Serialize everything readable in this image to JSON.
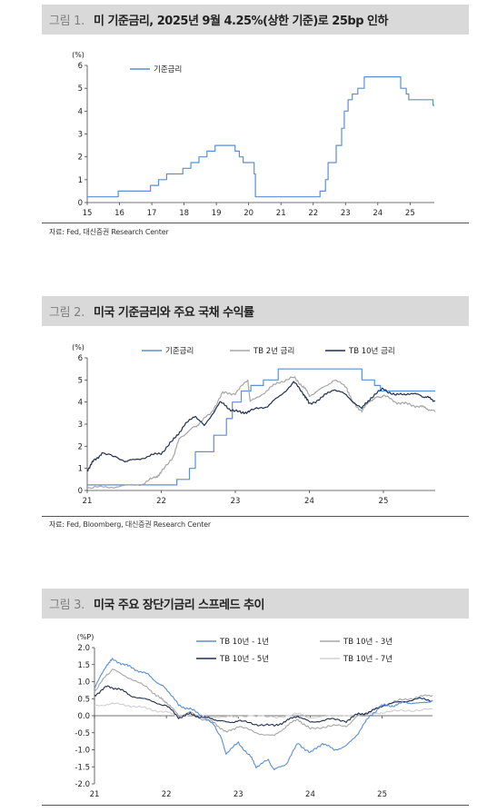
{
  "charts": [
    {
      "fig_label": "그림 1.",
      "title": "미 기준금리, 2025년 9월 4.25%(상한 기준)로 25bp 인하",
      "source": "자료: Fed, 대신증권 Research Center",
      "colors": {
        "series": [
          "#5b8fd6"
        ]
      }
    },
    {
      "fig_label": "그림 2.",
      "title": "미국 기준금리와 주요 국채 수익률",
      "source": "자료: Fed, Bloomberg, 대신증권 Research Center",
      "colors": {
        "series": [
          "#5b8fd6",
          "#a6a6a6",
          "#1f2f4f"
        ]
      }
    },
    {
      "fig_label": "그림 3.",
      "title": "미국 주요 장단기금리 스프레드 추이",
      "source": "",
      "colors": {
        "series": [
          "#5b8fd6",
          "#a6a6a6",
          "#1f2f4f",
          "#d0d0d0"
        ]
      }
    }
  ],
  "chart_data": [
    {
      "type": "line",
      "unit": "(%)",
      "ylim": [
        0,
        6
      ],
      "yticks": [
        "0",
        "1",
        "2",
        "3",
        "4",
        "5",
        "6"
      ],
      "xlim": [
        2015,
        2025.75
      ],
      "xticks": [
        "15",
        "16",
        "17",
        "18",
        "19",
        "20",
        "21",
        "22",
        "23",
        "24",
        "25"
      ],
      "legend_position": "top-left",
      "series": [
        {
          "name": "기준금리",
          "step": true,
          "x": [
            2015.0,
            2015.96,
            2016.96,
            2017.21,
            2017.46,
            2017.96,
            2018.21,
            2018.46,
            2018.71,
            2018.96,
            2019.58,
            2019.71,
            2019.83,
            2020.17,
            2020.21,
            2022.21,
            2022.38,
            2022.46,
            2022.71,
            2022.88,
            2022.96,
            2023.08,
            2023.21,
            2023.38,
            2023.58,
            2024.71,
            2024.88,
            2024.96,
            2025.71,
            2025.75
          ],
          "values": [
            0.25,
            0.5,
            0.75,
            1.0,
            1.25,
            1.5,
            1.75,
            2.0,
            2.25,
            2.5,
            2.25,
            2.0,
            1.75,
            1.25,
            0.25,
            0.5,
            1.0,
            1.75,
            2.5,
            3.25,
            4.0,
            4.5,
            4.75,
            5.0,
            5.5,
            5.0,
            4.75,
            4.5,
            4.25,
            4.25
          ]
        }
      ]
    },
    {
      "type": "line",
      "unit": "(%)",
      "ylim": [
        0,
        6
      ],
      "yticks": [
        "0",
        "1",
        "2",
        "3",
        "4",
        "5",
        "6"
      ],
      "xlim": [
        2021.0,
        2025.7
      ],
      "xticks": [
        "21",
        "22",
        "23",
        "24",
        "25"
      ],
      "legend_position": "top",
      "series": [
        {
          "name": "기준금리",
          "step": true,
          "x": [
            2021.0,
            2022.21,
            2022.38,
            2022.46,
            2022.71,
            2022.88,
            2022.96,
            2023.08,
            2023.21,
            2023.38,
            2023.58,
            2024.71,
            2024.88,
            2024.96,
            2025.7
          ],
          "values": [
            0.25,
            0.5,
            1.0,
            1.75,
            2.5,
            3.25,
            4.0,
            4.5,
            4.75,
            5.0,
            5.5,
            5.0,
            4.75,
            4.5,
            4.5
          ]
        },
        {
          "name": "TB 2년 금리",
          "x": [
            2021.0,
            2021.25,
            2021.5,
            2021.75,
            2021.92,
            2022.0,
            2022.17,
            2022.25,
            2022.42,
            2022.5,
            2022.67,
            2022.83,
            2023.0,
            2023.17,
            2023.2,
            2023.42,
            2023.58,
            2023.79,
            2023.92,
            2024.0,
            2024.17,
            2024.33,
            2024.5,
            2024.58,
            2024.71,
            2024.83,
            2024.92,
            2025.0,
            2025.17,
            2025.33,
            2025.5,
            2025.6,
            2025.7
          ],
          "values": [
            0.12,
            0.15,
            0.2,
            0.3,
            0.6,
            0.8,
            1.6,
            2.4,
            2.8,
            3.0,
            3.5,
            4.4,
            4.4,
            5.0,
            4.0,
            4.5,
            4.9,
            5.1,
            4.7,
            4.3,
            4.6,
            5.0,
            4.7,
            4.0,
            3.6,
            4.1,
            4.2,
            4.3,
            4.0,
            3.9,
            3.8,
            3.7,
            3.55
          ]
        },
        {
          "name": "TB 10년 금리",
          "x": [
            2021.0,
            2021.08,
            2021.2,
            2021.5,
            2021.6,
            2021.83,
            2022.0,
            2022.17,
            2022.3,
            2022.46,
            2022.58,
            2022.79,
            2022.92,
            2023.08,
            2023.2,
            2023.42,
            2023.58,
            2023.79,
            2023.92,
            2024.0,
            2024.17,
            2024.33,
            2024.5,
            2024.71,
            2024.83,
            2025.0,
            2025.17,
            2025.33,
            2025.5,
            2025.6,
            2025.7
          ],
          "values": [
            0.93,
            1.3,
            1.7,
            1.35,
            1.35,
            1.55,
            1.7,
            2.3,
            2.9,
            3.4,
            2.9,
            4.0,
            3.7,
            3.5,
            3.6,
            3.8,
            4.2,
            4.9,
            4.4,
            3.9,
            4.2,
            4.6,
            4.3,
            3.7,
            4.2,
            4.6,
            4.3,
            4.4,
            4.3,
            4.2,
            4.05
          ]
        }
      ]
    },
    {
      "type": "line",
      "unit": "(%P)",
      "ylim": [
        -2.0,
        2.0
      ],
      "yticks": [
        "2.0",
        "1.5",
        "1.0",
        "0.5",
        "0.0",
        "-0.5",
        "-1.0",
        "-1.5",
        "-2.0"
      ],
      "xlim": [
        2021.0,
        2025.7
      ],
      "xticks": [
        "21",
        "22",
        "23",
        "24",
        "25"
      ],
      "legend_position": "top",
      "series": [
        {
          "name": "TB 10년 - 1년",
          "x": [
            2021.0,
            2021.17,
            2021.25,
            2021.42,
            2021.58,
            2021.75,
            2021.92,
            2022.0,
            2022.17,
            2022.33,
            2022.5,
            2022.67,
            2022.75,
            2022.83,
            2023.0,
            2023.17,
            2023.25,
            2023.42,
            2023.5,
            2023.67,
            2023.83,
            2024.0,
            2024.17,
            2024.33,
            2024.5,
            2024.67,
            2024.83,
            2025.0,
            2025.17,
            2025.33,
            2025.5,
            2025.7
          ],
          "values": [
            0.8,
            1.5,
            1.65,
            1.5,
            1.35,
            1.2,
            0.9,
            0.8,
            0.3,
            0.2,
            0.0,
            -0.3,
            -0.6,
            -1.1,
            -0.8,
            -1.2,
            -1.5,
            -1.3,
            -1.6,
            -1.4,
            -0.8,
            -1.1,
            -0.8,
            -1.0,
            -0.9,
            -0.5,
            0.0,
            0.3,
            0.3,
            0.4,
            0.35,
            0.45
          ]
        },
        {
          "name": "TB 10년 - 3년",
          "x": [
            2021.0,
            2021.17,
            2021.25,
            2021.5,
            2021.75,
            2021.92,
            2022.0,
            2022.17,
            2022.33,
            2022.5,
            2022.67,
            2022.83,
            2023.0,
            2023.25,
            2023.5,
            2023.67,
            2023.83,
            2024.0,
            2024.25,
            2024.5,
            2024.67,
            2024.83,
            2025.0,
            2025.25,
            2025.5,
            2025.7
          ],
          "values": [
            0.7,
            1.2,
            1.35,
            1.1,
            0.8,
            0.5,
            0.4,
            0.0,
            0.1,
            -0.1,
            -0.2,
            -0.5,
            -0.3,
            -0.5,
            -0.6,
            -0.3,
            -0.1,
            -0.4,
            -0.3,
            -0.3,
            0.0,
            0.1,
            0.3,
            0.45,
            0.55,
            0.6
          ]
        },
        {
          "name": "TB 10년 - 5년",
          "x": [
            2021.0,
            2021.17,
            2021.33,
            2021.5,
            2021.75,
            2022.0,
            2022.17,
            2022.33,
            2022.5,
            2022.67,
            2022.83,
            2023.0,
            2023.25,
            2023.5,
            2023.67,
            2023.83,
            2024.0,
            2024.25,
            2024.5,
            2024.67,
            2024.83,
            2025.0,
            2025.25,
            2025.5,
            2025.7
          ],
          "values": [
            0.6,
            0.85,
            0.8,
            0.6,
            0.45,
            0.3,
            -0.05,
            0.05,
            -0.05,
            -0.1,
            -0.2,
            -0.15,
            -0.25,
            -0.3,
            -0.15,
            0.0,
            -0.2,
            -0.1,
            -0.15,
            0.05,
            0.1,
            0.3,
            0.4,
            0.5,
            0.45
          ]
        },
        {
          "name": "TB 10년 - 7년",
          "x": [
            2021.0,
            2021.25,
            2021.5,
            2021.75,
            2022.0,
            2022.17,
            2022.5,
            2022.83,
            2023.0,
            2023.5,
            2023.83,
            2024.0,
            2024.5,
            2024.83,
            2025.0,
            2025.33,
            2025.7
          ],
          "values": [
            0.3,
            0.35,
            0.3,
            0.2,
            0.1,
            0.0,
            0.0,
            -0.05,
            0.0,
            -0.05,
            0.05,
            -0.05,
            0.0,
            0.05,
            0.1,
            0.15,
            0.2
          ]
        }
      ]
    }
  ]
}
